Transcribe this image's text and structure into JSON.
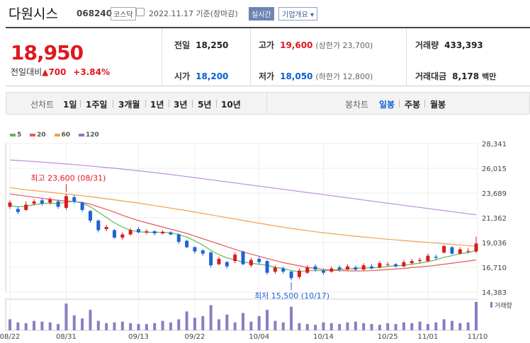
{
  "header": {
    "name": "다원시스",
    "code": "068240",
    "market": "코스닥",
    "date": "2022.11.17 기준(장마감)",
    "realtime": "실시간",
    "overview": "기업개요 ▾"
  },
  "quote": {
    "price": "18,950",
    "change_label": "전일대비",
    "change_value": "▲700",
    "change_pct": "+3.84%",
    "prev_label": "전일",
    "prev": "18,250",
    "high_label": "고가",
    "high": "19,600",
    "upper_limit": "(상한가 23,700)",
    "volume_label": "거래량",
    "volume": "433,393",
    "open_label": "시가",
    "open": "18,200",
    "low_label": "저가",
    "low": "18,050",
    "lower_limit": "(하한가 12,800)",
    "amount_label": "거래대금",
    "amount": "8,178",
    "amount_unit": "백만"
  },
  "controls": {
    "line_label": "선차트",
    "periods": [
      "1일",
      "1주일",
      "3개월",
      "1년",
      "3년",
      "5년",
      "10년"
    ],
    "candle_label": "봉차트",
    "candles": [
      "일봉",
      "주봉",
      "월봉"
    ],
    "active_candle": "일봉"
  },
  "legend": [
    {
      "label": "5",
      "color": "#5cb85c"
    },
    {
      "label": "20",
      "color": "#e8585a"
    },
    {
      "label": "60",
      "color": "#f0a050"
    },
    {
      "label": "120",
      "color": "#9c6cd0"
    }
  ],
  "chart_data": {
    "type": "candlestick",
    "y_ticks": [
      "28,341",
      "26,015",
      "23,689",
      "21,362",
      "19,036",
      "16,710",
      "14,383"
    ],
    "y_range": [
      14383,
      28341
    ],
    "x_ticks": [
      "08/22",
      "08/31",
      "09/13",
      "09/22",
      "10/04",
      "10/14",
      "10/25",
      "11/01",
      "11/10"
    ],
    "volume_label": "거래량",
    "high_annotation": "최고 23,600 (08/31)",
    "low_annotation": "최저 15,500 (10/17)",
    "candles": [
      {
        "o": 22400,
        "c": 22800,
        "h": 23000,
        "l": 22200
      },
      {
        "o": 22200,
        "c": 21900,
        "h": 22400,
        "l": 21700
      },
      {
        "o": 22100,
        "c": 22600,
        "h": 22900,
        "l": 22000
      },
      {
        "o": 22700,
        "c": 22900,
        "h": 23100,
        "l": 22500
      },
      {
        "o": 23000,
        "c": 22700,
        "h": 23200,
        "l": 22500
      },
      {
        "o": 22800,
        "c": 23100,
        "h": 23300,
        "l": 22600
      },
      {
        "o": 22900,
        "c": 22400,
        "h": 23100,
        "l": 22200
      },
      {
        "o": 22300,
        "c": 23400,
        "h": 23600,
        "l": 22100
      },
      {
        "o": 23300,
        "c": 22900,
        "h": 23500,
        "l": 22700
      },
      {
        "o": 22800,
        "c": 22100,
        "h": 22900,
        "l": 21900
      },
      {
        "o": 22000,
        "c": 21100,
        "h": 22100,
        "l": 20900
      },
      {
        "o": 21100,
        "c": 20200,
        "h": 21200,
        "l": 20000
      },
      {
        "o": 20300,
        "c": 20500,
        "h": 20700,
        "l": 20100
      },
      {
        "o": 20200,
        "c": 19500,
        "h": 20300,
        "l": 19400
      },
      {
        "o": 19500,
        "c": 19800,
        "h": 20000,
        "l": 19300
      },
      {
        "o": 19800,
        "c": 20200,
        "h": 20400,
        "l": 19700
      },
      {
        "o": 20300,
        "c": 20000,
        "h": 20500,
        "l": 19900
      },
      {
        "o": 20000,
        "c": 20100,
        "h": 20300,
        "l": 19800
      },
      {
        "o": 20100,
        "c": 19900,
        "h": 20200,
        "l": 19700
      },
      {
        "o": 19900,
        "c": 20050,
        "h": 20200,
        "l": 19800
      },
      {
        "o": 20000,
        "c": 19800,
        "h": 20100,
        "l": 19700
      },
      {
        "o": 19800,
        "c": 19100,
        "h": 19900,
        "l": 18900
      },
      {
        "o": 19200,
        "c": 18600,
        "h": 19300,
        "l": 18500
      },
      {
        "o": 18600,
        "c": 18200,
        "h": 18700,
        "l": 18000
      },
      {
        "o": 18300,
        "c": 18000,
        "h": 18400,
        "l": 17800
      },
      {
        "o": 18100,
        "c": 16900,
        "h": 18200,
        "l": 16700
      },
      {
        "o": 17000,
        "c": 17500,
        "h": 17700,
        "l": 16900
      },
      {
        "o": 17200,
        "c": 16800,
        "h": 17300,
        "l": 16600
      },
      {
        "o": 17300,
        "c": 17900,
        "h": 18100,
        "l": 17100
      },
      {
        "o": 18200,
        "c": 17000,
        "h": 18300,
        "l": 16900
      },
      {
        "o": 16900,
        "c": 17400,
        "h": 17600,
        "l": 16700
      },
      {
        "o": 17500,
        "c": 17200,
        "h": 17700,
        "l": 17000
      },
      {
        "o": 17300,
        "c": 16200,
        "h": 17400,
        "l": 16000
      },
      {
        "o": 16300,
        "c": 16700,
        "h": 16900,
        "l": 16100
      },
      {
        "o": 16600,
        "c": 16300,
        "h": 16800,
        "l": 16100
      },
      {
        "o": 16300,
        "c": 15700,
        "h": 16400,
        "l": 15500
      },
      {
        "o": 15800,
        "c": 16400,
        "h": 16600,
        "l": 15600
      },
      {
        "o": 16200,
        "c": 16700,
        "h": 16900,
        "l": 16100
      },
      {
        "o": 16800,
        "c": 16500,
        "h": 17000,
        "l": 16300
      },
      {
        "o": 16400,
        "c": 16200,
        "h": 16600,
        "l": 16000
      },
      {
        "o": 16300,
        "c": 16600,
        "h": 16800,
        "l": 16200
      },
      {
        "o": 16700,
        "c": 16500,
        "h": 16900,
        "l": 16300
      },
      {
        "o": 16500,
        "c": 16800,
        "h": 17000,
        "l": 16400
      },
      {
        "o": 16700,
        "c": 16500,
        "h": 16900,
        "l": 16400
      },
      {
        "o": 16500,
        "c": 16900,
        "h": 17100,
        "l": 16400
      },
      {
        "o": 16800,
        "c": 16600,
        "h": 17000,
        "l": 16500
      },
      {
        "o": 16700,
        "c": 17100,
        "h": 17300,
        "l": 16600
      },
      {
        "o": 17000,
        "c": 17000,
        "h": 17200,
        "l": 16800
      },
      {
        "o": 17000,
        "c": 16800,
        "h": 17100,
        "l": 16700
      },
      {
        "o": 16800,
        "c": 17200,
        "h": 17400,
        "l": 16700
      },
      {
        "o": 17100,
        "c": 17300,
        "h": 17500,
        "l": 17000
      },
      {
        "o": 17300,
        "c": 17400,
        "h": 17600,
        "l": 17100
      },
      {
        "o": 17300,
        "c": 17800,
        "h": 18000,
        "l": 17200
      },
      {
        "o": 17700,
        "c": 17600,
        "h": 17900,
        "l": 17400
      },
      {
        "o": 18100,
        "c": 18700,
        "h": 18800,
        "l": 18000
      },
      {
        "o": 18600,
        "c": 18000,
        "h": 18700,
        "l": 17900
      },
      {
        "o": 18000,
        "c": 18400,
        "h": 18600,
        "l": 17900
      },
      {
        "o": 18200,
        "c": 18250,
        "h": 18500,
        "l": 18000
      },
      {
        "o": 18200,
        "c": 18950,
        "h": 19600,
        "l": 18050
      }
    ],
    "volume": [
      14,
      10,
      9,
      12,
      11,
      10,
      8,
      34,
      19,
      15,
      26,
      12,
      9,
      10,
      11,
      9,
      8,
      8,
      9,
      12,
      10,
      14,
      24,
      16,
      18,
      32,
      14,
      20,
      10,
      22,
      11,
      18,
      26,
      12,
      10,
      30,
      9,
      8,
      7,
      10,
      9,
      8,
      10,
      11,
      9,
      8,
      7,
      9,
      8,
      10,
      9,
      11,
      8,
      10,
      14,
      12,
      9,
      10,
      36
    ],
    "ma5": [
      22500,
      22400,
      22450,
      22600,
      22700,
      22750,
      22700,
      22850,
      22900,
      22750,
      22400,
      21900,
      21400,
      20900,
      20500,
      20200,
      20050,
      20000,
      20000,
      20000,
      19950,
      19800,
      19550,
      19200,
      18800,
      18300,
      17900,
      17600,
      17400,
      17200,
      17100,
      17000,
      16900,
      16700,
      16600,
      16400,
      16300,
      16400,
      16400,
      16400,
      16450,
      16500,
      16550,
      16600,
      16650,
      16650,
      16700,
      16800,
      16850,
      16900,
      17000,
      17100,
      17250,
      17400,
      17650,
      17800,
      18000,
      18100,
      18300
    ],
    "ma20": [
      23600,
      23500,
      23400,
      23300,
      23200,
      23100,
      23000,
      22950,
      22900,
      22800,
      22650,
      22400,
      22150,
      21900,
      21600,
      21350,
      21100,
      20900,
      20700,
      20500,
      20300,
      20100,
      19900,
      19650,
      19400,
      19150,
      18900,
      18650,
      18400,
      18150,
      17950,
      17750,
      17550,
      17350,
      17150,
      17000,
      16850,
      16700,
      16600,
      16500,
      16450,
      16400,
      16380,
      16370,
      16380,
      16400,
      16450,
      16500,
      16550,
      16600,
      16680,
      16750,
      16820,
      16900,
      17000,
      17100,
      17200,
      17300,
      17400
    ],
    "ma60": [
      24200,
      24100,
      24000,
      23920,
      23840,
      23760,
      23680,
      23600,
      23520,
      23440,
      23350,
      23250,
      23150,
      23050,
      22950,
      22850,
      22750,
      22630,
      22510,
      22390,
      22270,
      22150,
      22030,
      21900,
      21770,
      21640,
      21510,
      21380,
      21250,
      21120,
      20990,
      20860,
      20730,
      20600,
      20480,
      20370,
      20260,
      20150,
      20050,
      19960,
      19870,
      19790,
      19710,
      19630,
      19560,
      19490,
      19420,
      19350,
      19290,
      19230,
      19170,
      19110,
      19050,
      18990,
      18930,
      18870,
      18810,
      18750,
      18700
    ],
    "ma120": [
      26800,
      26750,
      26700,
      26650,
      26600,
      26540,
      26480,
      26420,
      26360,
      26300,
      26230,
      26160,
      26090,
      26020,
      25940,
      25860,
      25780,
      25700,
      25610,
      25520,
      25430,
      25340,
      25240,
      25140,
      25040,
      24940,
      24840,
      24740,
      24640,
      24540,
      24440,
      24340,
      24240,
      24140,
      24040,
      23940,
      23840,
      23740,
      23640,
      23540,
      23440,
      23340,
      23240,
      23140,
      23040,
      22940,
      22840,
      22740,
      22640,
      22540,
      22440,
      22340,
      22240,
      22140,
      22040,
      21940,
      21840,
      21740,
      21650
    ]
  }
}
